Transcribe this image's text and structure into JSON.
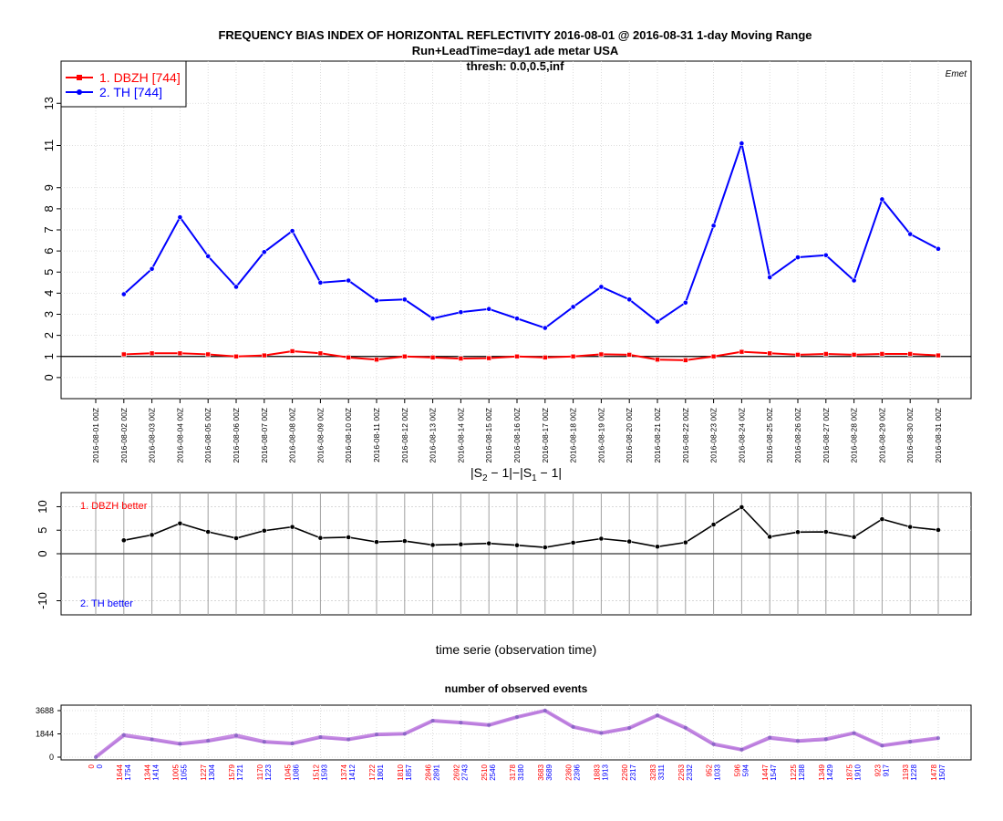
{
  "header": {
    "title_line1": "FREQUENCY BIAS INDEX OF HORIZONTAL REFLECTIVITY 2016-08-01 @ 2016-08-31 1-day Moving Range",
    "title_line2": "Run+LeadTime=day1 ade metar USA",
    "title_line3": "thresh: 0.0,0.5,inf",
    "corner_label": "Emet"
  },
  "colors": {
    "dbzh": "#ff0000",
    "th": "#0000ff",
    "diff": "#000000",
    "events": "#c080e0"
  },
  "chart_data": [
    {
      "type": "line",
      "ylim": [
        -1,
        15
      ],
      "yticks": [
        0,
        1,
        2,
        3,
        4,
        5,
        6,
        7,
        8,
        9,
        11,
        13
      ],
      "reference_line": 1,
      "grid": true,
      "legend_position": "top-left",
      "categories": [
        "2016-08-01 00Z",
        "2016-08-02 00Z",
        "2016-08-03 00Z",
        "2016-08-04 00Z",
        "2016-08-05 00Z",
        "2016-08-06 00Z",
        "2016-08-07 00Z",
        "2016-08-08 00Z",
        "2016-08-09 00Z",
        "2016-08-10 00Z",
        "2016-08-11 00Z",
        "2016-08-12 00Z",
        "2016-08-13 00Z",
        "2016-08-14 00Z",
        "2016-08-15 00Z",
        "2016-08-16 00Z",
        "2016-08-17 00Z",
        "2016-08-18 00Z",
        "2016-08-19 00Z",
        "2016-08-20 00Z",
        "2016-08-21 00Z",
        "2016-08-22 00Z",
        "2016-08-23 00Z",
        "2016-08-24 00Z",
        "2016-08-25 00Z",
        "2016-08-26 00Z",
        "2016-08-27 00Z",
        "2016-08-28 00Z",
        "2016-08-29 00Z",
        "2016-08-30 00Z",
        "2016-08-31 00Z"
      ],
      "series": [
        {
          "name": "1. DBZH [744]",
          "values": [
            null,
            1.1,
            1.15,
            1.15,
            1.1,
            1.0,
            1.05,
            1.25,
            1.15,
            0.95,
            0.85,
            1.0,
            0.95,
            0.9,
            0.92,
            1.0,
            0.95,
            1.0,
            1.1,
            1.08,
            0.85,
            0.82,
            1.0,
            1.22,
            1.15,
            1.08,
            1.12,
            1.08,
            1.12,
            1.12,
            1.05
          ]
        },
        {
          "name": "2. TH [744]",
          "values": [
            null,
            3.95,
            5.15,
            7.6,
            5.75,
            4.3,
            5.95,
            6.95,
            4.5,
            4.6,
            3.65,
            3.7,
            2.8,
            3.1,
            3.25,
            2.8,
            2.35,
            3.35,
            4.3,
            3.7,
            2.65,
            3.55,
            7.2,
            11.1,
            4.75,
            5.7,
            5.8,
            4.6,
            8.45,
            6.8,
            6.1
          ]
        }
      ]
    },
    {
      "type": "line",
      "xlabel": "time serie (observation time)",
      "ylim": [
        -13,
        13
      ],
      "yticks": [
        -10,
        0,
        5,
        10
      ],
      "reference_line": 0,
      "grid": true,
      "annotations": {
        "top": "1. DBZH  better",
        "bottom": "2. TH  better"
      },
      "series": [
        {
          "values": [
            null,
            2.85,
            4.0,
            6.45,
            4.65,
            3.3,
            4.9,
            5.7,
            3.35,
            3.5,
            2.5,
            2.7,
            1.85,
            2.0,
            2.2,
            1.8,
            1.35,
            2.35,
            3.2,
            2.6,
            1.5,
            2.4,
            6.2,
            9.9,
            3.6,
            4.6,
            4.65,
            3.55,
            7.35,
            5.7,
            5.05
          ]
        }
      ]
    },
    {
      "type": "line",
      "title": "number of observed events",
      "ylim": [
        0,
        3688
      ],
      "yticks": [
        0,
        1844,
        3688
      ],
      "grid": true,
      "series": [
        {
          "name": "DBZH",
          "values": [
            0,
            1644,
            1344,
            1005,
            1227,
            1579,
            1170,
            1045,
            1512,
            1374,
            1722,
            1810,
            2846,
            2692,
            2510,
            3178,
            3683,
            2360,
            1883,
            2260,
            3283,
            2263,
            952,
            596,
            1447,
            1225,
            1349,
            1875,
            923,
            1193,
            1478
          ]
        },
        {
          "name": "TH",
          "values": [
            0,
            1754,
            1414,
            1055,
            1304,
            1721,
            1223,
            1086,
            1593,
            1412,
            1801,
            1857,
            2891,
            2743,
            2546,
            3180,
            3689,
            2396,
            1913,
            2317,
            3311,
            2332,
            1033,
            594,
            1547,
            1288,
            1429,
            1910,
            917,
            1228,
            1507
          ]
        }
      ]
    }
  ]
}
